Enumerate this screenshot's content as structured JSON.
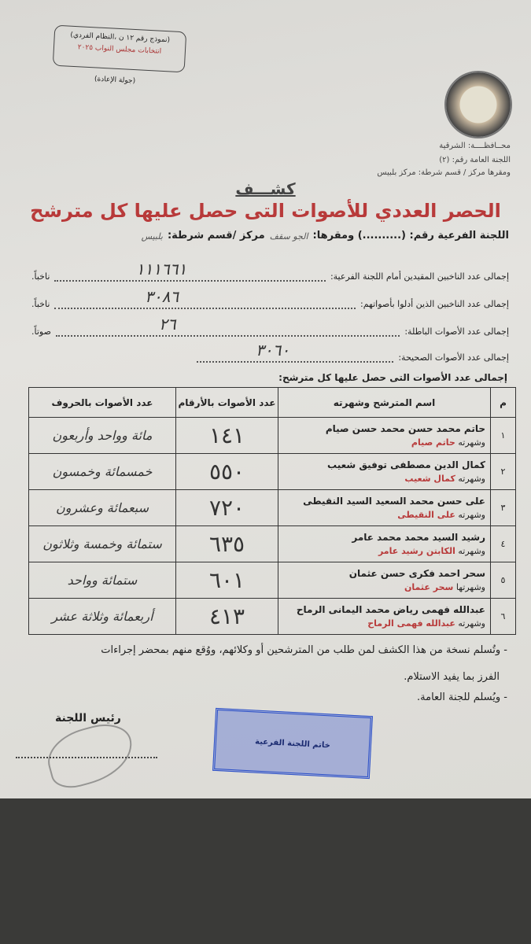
{
  "form": {
    "form_number": "(نموذج رقم ١٢ ن ،النظام الفردي)",
    "election": "انتخابات مجلس النواب ٢٠٢٥",
    "round": "(جولة الإعادة)"
  },
  "header": {
    "governorate": "محــافظــــة: الشرقية",
    "general_committee": "اللجنة العامة رقم: (٢)",
    "seat": "ومقرها مركز / قسم شرطة: مركز بلبيس"
  },
  "kashf": "كشـــف",
  "title": "الحصر العددي للأصوات التى حصل عليها كل مترشح",
  "committee_line": {
    "label": "اللجنة الفرعية رقم: (..........) ومقرها:",
    "seat_value": "الجو سقف",
    "station_label": "مركز /قسم شرطة:",
    "station_value": "بلبيس"
  },
  "totals": [
    {
      "label": "إجمالى عدد الناخبين المقيدين أمام اللجنة الفرعية:",
      "value": "١١١٦٦١",
      "unit": "ناخباً."
    },
    {
      "label": "إجمالى عدد الناخبين الذين أدلوا بأصواتهم:",
      "value": "٣٠٨٦",
      "unit": "ناخباً."
    },
    {
      "label": "إجمالى عدد الأصوات الباطلة:",
      "value": "٢٦",
      "unit": "صوتاً."
    },
    {
      "label": "إجمالى عدد الأصوات الصحيحة:",
      "value": "٣٠٦٠",
      "unit": "صوتاً."
    }
  ],
  "table_caption": "إجمالى عدد الأصوات التى حصل عليها كل مترشح:",
  "table": {
    "headers": [
      "م",
      "اسم المترشح وشهرته",
      "عدد الأصوات بالأرقام",
      "عدد الأصوات بالحروف"
    ],
    "rows": [
      {
        "n": "١",
        "name": "حاتم محمد حسن محمد حسن صيام",
        "nick_prefix": "وشهرته",
        "nick": "حاتم صيام",
        "votes": "١٤١",
        "words": "مائة وواحد وأربعون"
      },
      {
        "n": "٢",
        "name": "كمال الدين مصطفى توفيق شعيب",
        "nick_prefix": "وشهرته",
        "nick": "كمال شعيب",
        "votes": "٥٥٠",
        "words": "خمسمائة وخمسون"
      },
      {
        "n": "٣",
        "name": "على حسن محمد السعيد السيد النقيطى",
        "nick_prefix": "وشهرته",
        "nick": "على النقيطى",
        "votes": "٧٢٠",
        "words": "سبعمائة وعشرون"
      },
      {
        "n": "٤",
        "name": "رشيد السيد محمد محمد عامر",
        "nick_prefix": "وشهرته",
        "nick": "الكابتن رشيد عامر",
        "votes": "٦٣٥",
        "words": "ستمائة وخمسة وثلاثون"
      },
      {
        "n": "٥",
        "name": "سحر احمد فكرى حسن عثمان",
        "nick_prefix": "وشهرتها",
        "nick": "سحر عثمان",
        "votes": "٦٠١",
        "words": "ستمائة وواحد"
      },
      {
        "n": "٦",
        "name": "عبدالله فهمى رياض محمد اليمانى الرماح",
        "nick_prefix": "وشهرته",
        "nick": "عبدالله فهمى الرماح",
        "votes": "٤١٣",
        "words": "أربعمائة وثلاثة عشر"
      }
    ]
  },
  "notes": [
    "- وتُسلم نسخة من هذا الكشف لمن طلب من المترشحين أو وكلائهم، ووُقع منهم بمحضر إجراءات",
    "الفرز بما يفيد الاستلام.",
    "- ويُسلم للجنة العامة."
  ],
  "chair_label": "رئيس اللجنة",
  "stamp_text": "خاتم اللجنة الفرعية",
  "colors": {
    "title": "#b83a3a",
    "stamp": "#2a4fc8"
  }
}
